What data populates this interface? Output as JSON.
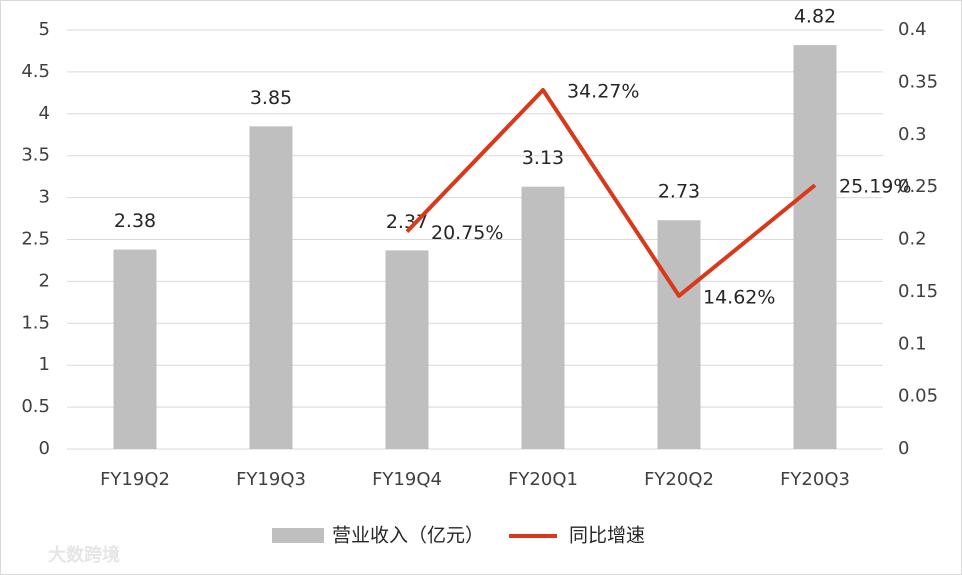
{
  "chart_data": {
    "type": "bar",
    "categories": [
      "FY19Q2",
      "FY19Q3",
      "FY19Q4",
      "FY20Q1",
      "FY20Q2",
      "FY20Q3"
    ],
    "series": [
      {
        "name": "营业收入（亿元）",
        "type": "bar",
        "color": "#bfbfbf",
        "values": [
          2.38,
          3.85,
          2.37,
          3.13,
          2.73,
          4.82
        ]
      },
      {
        "name": "同比增速",
        "type": "line",
        "axis": "y2",
        "color": "#d8391b",
        "values": [
          null,
          null,
          0.2075,
          0.3427,
          0.1462,
          0.2519
        ],
        "value_labels": [
          null,
          null,
          "20.75%",
          "34.27%",
          "14.62%",
          "25.19%"
        ]
      }
    ],
    "ylim": [
      0,
      5
    ],
    "yticks": [
      0,
      0.5,
      1,
      1.5,
      2,
      2.5,
      3,
      3.5,
      4,
      4.5,
      5
    ],
    "y2lim": [
      0,
      0.4
    ],
    "y2ticks": [
      0,
      0.05,
      0.1,
      0.15,
      0.2,
      0.25,
      0.3,
      0.35,
      0.4
    ],
    "grid": true,
    "legend": "bottom",
    "watermark": "大数跨境"
  }
}
